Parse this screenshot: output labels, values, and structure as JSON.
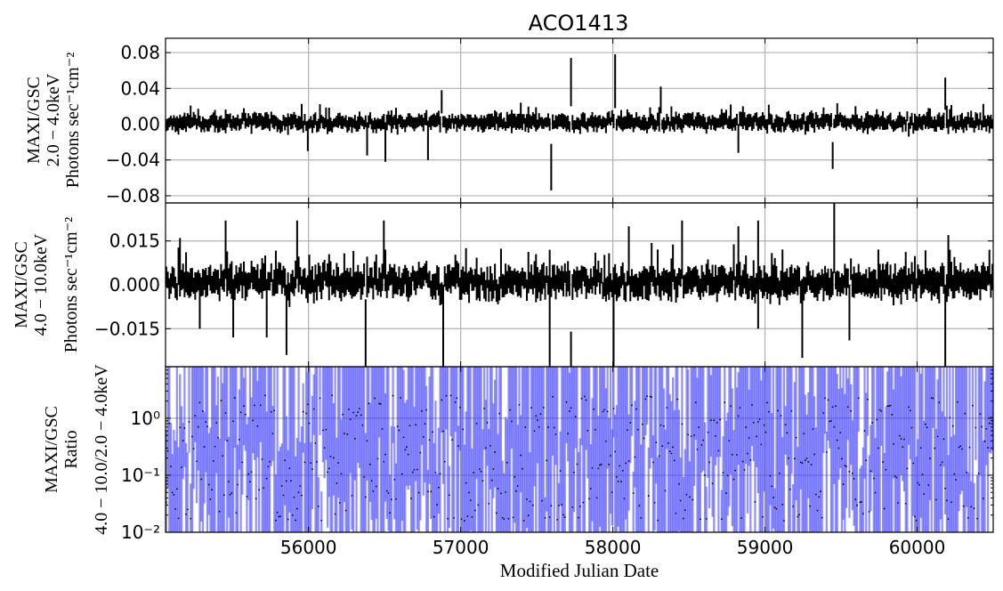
{
  "chart_data": [
    {
      "type": "errorbar",
      "panel": "top",
      "title": "ACO1413",
      "ylabel_lines": [
        "MAXI/GSC",
        "2.0 − 4.0keV",
        "Photons sec⁻¹cm⁻²"
      ],
      "xlim": [
        55060,
        60500
      ],
      "ylim": [
        -0.088,
        0.096
      ],
      "yticks": [
        0.08,
        0.04,
        0.0,
        -0.04,
        -0.08
      ],
      "ytick_labels": [
        "0.08",
        "0.04",
        "0.00",
        "−0.04",
        "−0.08"
      ],
      "grid": true,
      "bin_days": 10,
      "series_color": "#000000",
      "typical_value": 0.002,
      "typical_error": 0.007,
      "spikes": [
        {
          "x": 55860,
          "top": 0.012,
          "bottom": -0.012
        },
        {
          "x": 55990,
          "top": 0.004,
          "bottom": -0.03
        },
        {
          "x": 56380,
          "top": 0.002,
          "bottom": -0.035
        },
        {
          "x": 56500,
          "top": 0.002,
          "bottom": -0.042
        },
        {
          "x": 56780,
          "top": 0.004,
          "bottom": -0.04
        },
        {
          "x": 56870,
          "top": 0.038,
          "bottom": 0.012
        },
        {
          "x": 57590,
          "top": -0.022,
          "bottom": -0.074
        },
        {
          "x": 57720,
          "top": 0.074,
          "bottom": 0.02
        },
        {
          "x": 58010,
          "top": 0.078,
          "bottom": 0.018
        },
        {
          "x": 58310,
          "top": 0.042,
          "bottom": 0.012
        },
        {
          "x": 58820,
          "top": 0.0,
          "bottom": -0.032
        },
        {
          "x": 59440,
          "top": -0.02,
          "bottom": -0.05
        },
        {
          "x": 60180,
          "top": 0.052,
          "bottom": 0.016
        }
      ]
    },
    {
      "type": "errorbar",
      "panel": "middle",
      "ylabel_lines": [
        "MAXI/GSC",
        "4.0 − 10.0keV",
        "Photons sec⁻¹cm⁻²"
      ],
      "xlim": [
        55060,
        60500
      ],
      "ylim": [
        -0.028,
        0.028
      ],
      "yticks": [
        0.015,
        0.0,
        -0.015
      ],
      "ytick_labels": [
        "0.015",
        "0.000",
        "−0.015"
      ],
      "grid": true,
      "bin_days": 10,
      "series_color": "#000000",
      "typical_value": 0.001,
      "typical_error": 0.004,
      "spikes": [
        {
          "x": 55150,
          "top": 0.016,
          "bottom": -0.004
        },
        {
          "x": 55280,
          "top": 0.004,
          "bottom": -0.015
        },
        {
          "x": 55450,
          "top": 0.022,
          "bottom": 0.002
        },
        {
          "x": 55500,
          "top": 0.002,
          "bottom": -0.018
        },
        {
          "x": 55720,
          "top": 0.002,
          "bottom": -0.018
        },
        {
          "x": 55850,
          "top": 0.0,
          "bottom": -0.024
        },
        {
          "x": 55920,
          "top": 0.022,
          "bottom": 0.002
        },
        {
          "x": 56370,
          "top": -0.005,
          "bottom": -0.028
        },
        {
          "x": 56490,
          "top": 0.022,
          "bottom": 0.002
        },
        {
          "x": 56880,
          "top": 0.0,
          "bottom": -0.028
        },
        {
          "x": 57580,
          "top": 0.012,
          "bottom": -0.028
        },
        {
          "x": 57720,
          "top": -0.016,
          "bottom": -0.028
        },
        {
          "x": 58000,
          "top": 0.006,
          "bottom": -0.028
        },
        {
          "x": 58100,
          "top": 0.02,
          "bottom": 0.0
        },
        {
          "x": 58450,
          "top": 0.022,
          "bottom": 0.002
        },
        {
          "x": 58820,
          "top": 0.02,
          "bottom": 0.0
        },
        {
          "x": 58950,
          "top": 0.022,
          "bottom": -0.015
        },
        {
          "x": 59240,
          "top": 0.002,
          "bottom": -0.025
        },
        {
          "x": 59450,
          "top": 0.028,
          "bottom": 0.004
        },
        {
          "x": 59550,
          "top": 0.0,
          "bottom": -0.019
        },
        {
          "x": 60180,
          "top": 0.0,
          "bottom": -0.028
        },
        {
          "x": 60200,
          "top": 0.017,
          "bottom": -0.004
        }
      ]
    },
    {
      "type": "errorbar",
      "panel": "bottom",
      "ylabel_lines": [
        "MAXI/GSC",
        "Ratio",
        "4.0 − 10.0/2.0 − 4.0keV"
      ],
      "xlabel": "Modified Julian Date",
      "xlim": [
        55060,
        60500
      ],
      "xticks": [
        56000,
        57000,
        58000,
        59000,
        60000
      ],
      "xtick_labels": [
        "56000",
        "57000",
        "58000",
        "59000",
        "60000"
      ],
      "yscale": "log",
      "ylim": [
        0.01,
        8
      ],
      "yticks": [
        1,
        0.1,
        0.01
      ],
      "ytick_labels": [
        "10⁰",
        "10⁻¹",
        "10⁻²"
      ],
      "grid": true,
      "bin_days": 10,
      "series_color": "#3333ff",
      "series_alpha": 0.55
    }
  ]
}
